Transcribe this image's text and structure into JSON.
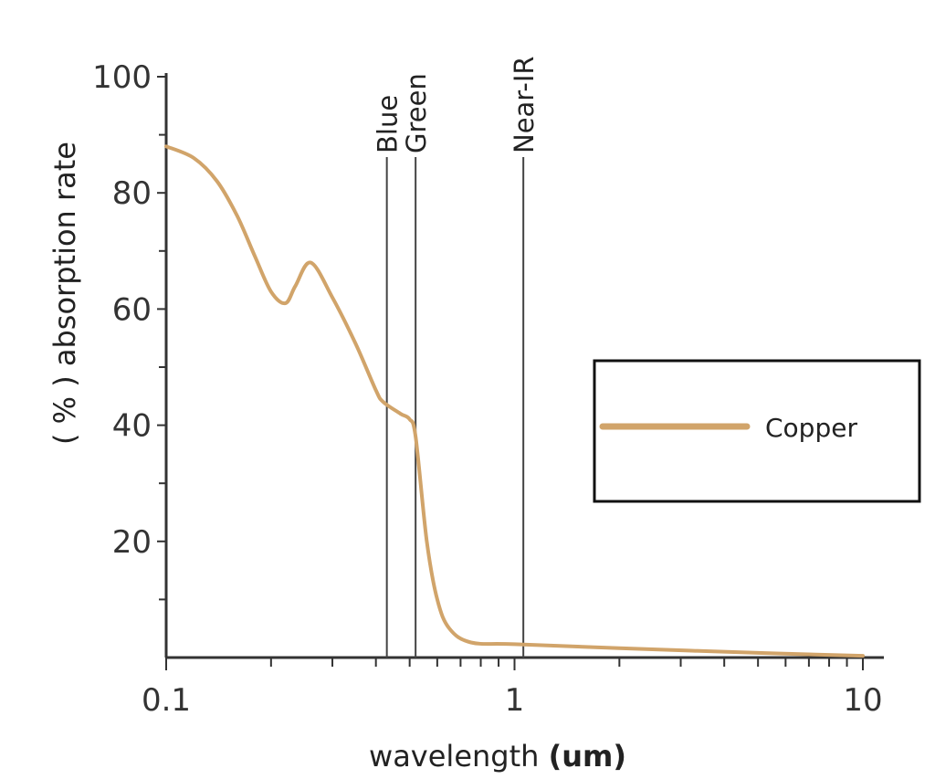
{
  "chart_data": {
    "type": "line",
    "x_scale": "log",
    "xlim": [
      0.1,
      10
    ],
    "ylim": [
      0,
      100
    ],
    "x_ticks": [
      {
        "value": 0.1,
        "label": "0.1"
      },
      {
        "value": 1,
        "label": "1"
      },
      {
        "value": 10,
        "label": "10"
      }
    ],
    "y_ticks": [
      {
        "value": 100,
        "label": "100"
      },
      {
        "value": 80,
        "label": "80"
      },
      {
        "value": 60,
        "label": "60"
      },
      {
        "value": 40,
        "label": "40"
      },
      {
        "value": 20,
        "label": "20"
      }
    ],
    "xlabel": {
      "prefix": "wavelength ",
      "unit": "(um)"
    },
    "ylabel": "( % ) absorption rate",
    "grid": false,
    "legend_position": "right",
    "series": [
      {
        "name": "Copper",
        "color": "#d1a46a",
        "x": [
          0.1,
          0.12,
          0.14,
          0.16,
          0.18,
          0.2,
          0.22,
          0.235,
          0.26,
          0.3,
          0.35,
          0.4,
          0.42,
          0.47,
          0.5,
          0.52,
          0.56,
          0.6,
          0.65,
          0.75,
          1.0,
          2.0,
          5.0,
          10.0
        ],
        "y": [
          88,
          86,
          82,
          76,
          69,
          63,
          61,
          64,
          68,
          62,
          54,
          46,
          44,
          42,
          41,
          38,
          20,
          10,
          5,
          2.6,
          2.3,
          1.6,
          0.8,
          0.3
        ]
      }
    ],
    "annotations": [
      {
        "label": "Blue",
        "x": 0.43
      },
      {
        "label": "Green",
        "x": 0.52
      },
      {
        "label": "Near-IR",
        "x": 1.06
      }
    ]
  }
}
